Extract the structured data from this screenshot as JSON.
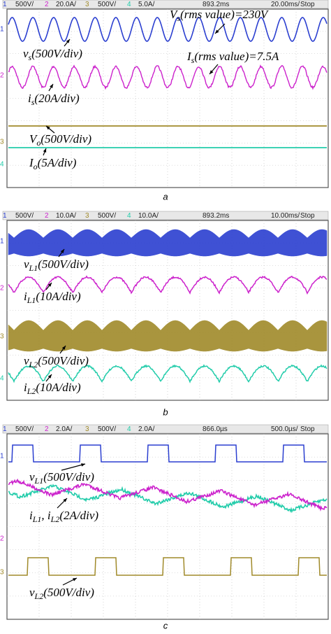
{
  "panels": [
    {
      "header": [
        "1",
        "500V/",
        "2",
        "20.0A/",
        "3",
        "500V/",
        "4",
        "5.0A/",
        "893.2ms",
        "20.00ms/",
        "Stop"
      ],
      "markers": [
        "1",
        "2",
        "3",
        "4"
      ],
      "annotations": [
        [
          "V",
          "s",
          "(rms value)=230V"
        ],
        [
          "v",
          "s",
          "(500V/div)"
        ],
        [
          "I",
          "s",
          "(rms value)=7.5A"
        ],
        [
          "i",
          "s",
          "(20A/div)"
        ],
        [
          "V",
          "o",
          "(500V/div)"
        ],
        [
          "I",
          "o",
          "(5A/div)"
        ]
      ],
      "caption": "a"
    },
    {
      "header": [
        "1",
        "500V/",
        "2",
        "10.0A/",
        "3",
        "500V/",
        "4",
        "10.0A/",
        "893.2ms",
        "10.00ms/",
        "Stop"
      ],
      "markers": [
        "1",
        "2",
        "3",
        "4"
      ],
      "annotations": [
        [
          "v",
          "L1",
          "(500V/div)"
        ],
        [
          "i",
          "L1",
          "(10A/div)"
        ],
        [
          "v",
          "L2",
          "(500V/div)"
        ],
        [
          "i",
          "L2",
          "(10A/div)"
        ]
      ],
      "caption": "b"
    },
    {
      "header": [
        "1",
        "500V/",
        "2",
        "2.0A/",
        "3",
        "500V/",
        "4",
        "2.0A/",
        "866.0µs",
        "500.0µs/",
        "Stop"
      ],
      "markers": [
        "1",
        "2",
        "3"
      ],
      "annotations": [
        [
          "v",
          "L1",
          "(500V/div)"
        ],
        [
          "i",
          "L1",
          ", i",
          "L2",
          "(2A/div)"
        ],
        [
          "v",
          "L2",
          "(500V/div)"
        ]
      ],
      "caption": "c"
    }
  ]
}
